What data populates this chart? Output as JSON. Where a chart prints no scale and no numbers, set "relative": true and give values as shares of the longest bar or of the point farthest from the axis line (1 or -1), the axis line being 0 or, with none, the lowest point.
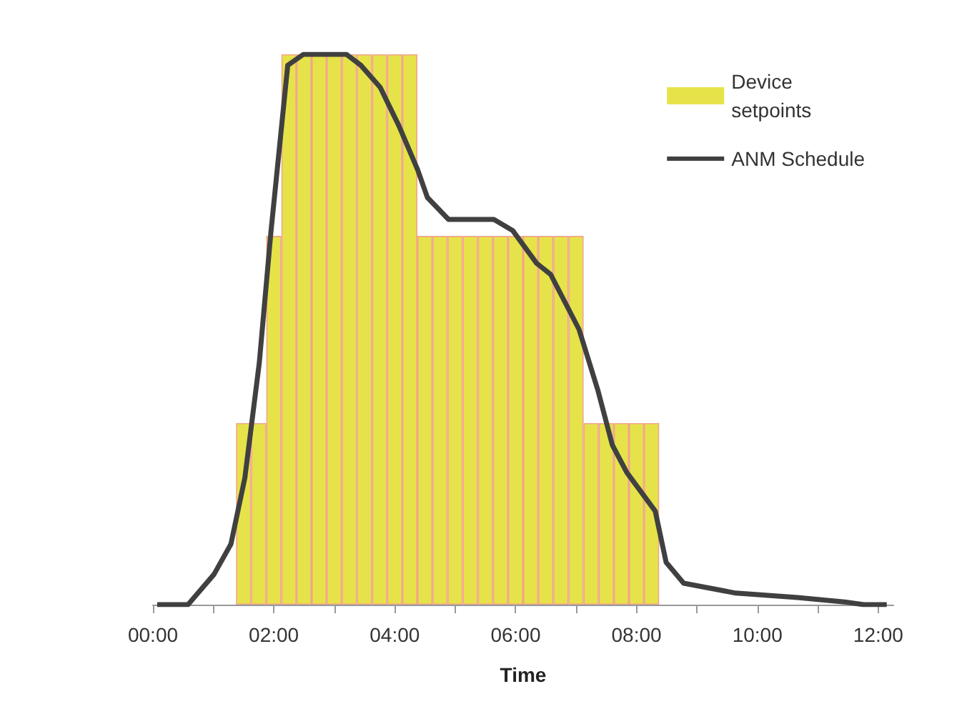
{
  "chart_data": {
    "type": "bar",
    "xlabel": "Time",
    "relative": true,
    "legend": "top right",
    "grid": false,
    "xlim": [
      0,
      12.25
    ],
    "xticks": [
      {
        "value": 0,
        "label": "00:00"
      },
      {
        "value": 1,
        "label": null
      },
      {
        "value": 2,
        "label": "02:00"
      },
      {
        "value": 3,
        "label": null
      },
      {
        "value": 4,
        "label": "04:00"
      },
      {
        "value": 5,
        "label": null
      },
      {
        "value": 6,
        "label": "06:00"
      },
      {
        "value": 7,
        "label": null
      },
      {
        "value": 8,
        "label": "08:00"
      },
      {
        "value": 9,
        "label": null
      },
      {
        "value": 10,
        "label": "10:00"
      },
      {
        "value": 11,
        "label": null
      },
      {
        "value": 12,
        "label": "12:00"
      }
    ],
    "series": [
      {
        "name": "Device setpoints",
        "color": "#e6e34a",
        "x": [
          1.5,
          1.75,
          2,
          2.25,
          2.5,
          2.75,
          3,
          3.25,
          3.5,
          3.75,
          4,
          4.25,
          4.5,
          4.75,
          5,
          5.25,
          5.5,
          5.75,
          6,
          6.25,
          6.5,
          6.75,
          7,
          7.25,
          7.5,
          7.75,
          8,
          8.25
        ],
        "values": [
          0.33,
          0.33,
          0.67,
          1,
          1,
          1,
          1,
          1,
          1,
          1,
          1,
          1,
          0.67,
          0.67,
          0.67,
          0.67,
          0.67,
          0.67,
          0.67,
          0.67,
          0.67,
          0.67,
          0.67,
          0.33,
          0.33,
          0.33,
          0.33,
          0.33
        ]
      },
      {
        "name": "ANM Schedule",
        "type": "line",
        "color": "#404040",
        "marker": "none",
        "x": [
          0.07,
          0.58,
          1.01,
          1.29,
          1.52,
          1.76,
          1.95,
          2.23,
          2.49,
          3.2,
          3.44,
          3.76,
          4.07,
          4.38,
          4.54,
          4.89,
          5.64,
          5.95,
          6.35,
          6.58,
          7.05,
          7.36,
          7.6,
          7.84,
          8.31,
          8.49,
          8.78,
          9.64,
          10.66,
          11.44,
          11.76,
          12.14
        ],
        "values": [
          0,
          0,
          0.055,
          0.11,
          0.23,
          0.44,
          0.675,
          0.98,
          1,
          1,
          0.98,
          0.94,
          0.87,
          0.79,
          0.74,
          0.7,
          0.7,
          0.68,
          0.62,
          0.6,
          0.5,
          0.39,
          0.29,
          0.24,
          0.17,
          0.077,
          0.039,
          0.021,
          0.013,
          0.005,
          0,
          0
        ]
      }
    ]
  }
}
